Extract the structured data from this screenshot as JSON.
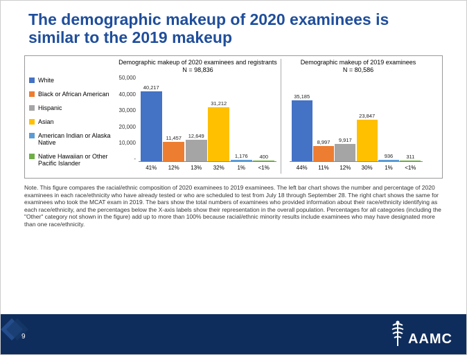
{
  "title": "The demographic makeup of 2020 examinees is similar to the 2019 makeup",
  "legend": [
    {
      "label": "White",
      "color": "#4472c4"
    },
    {
      "label": "Black or African American",
      "color": "#ed7d31"
    },
    {
      "label": "Hispanic",
      "color": "#a5a5a5"
    },
    {
      "label": "Asian",
      "color": "#ffc000"
    },
    {
      "label": "American Indian or Alaska Native",
      "color": "#5b9bd5"
    },
    {
      "label": "Native Hawaiian or Other Pacific Islander",
      "color": "#70ad47"
    }
  ],
  "ymax": 50000,
  "yticks": [
    "50,000",
    "40,000",
    "30,000",
    "20,000",
    "10,000",
    "-"
  ],
  "panel2020": {
    "title_l1": "Demographic makeup of 2020 examinees and registrants",
    "title_l2": "N = 98,836",
    "bars": [
      {
        "val": 40217,
        "label": "40,217",
        "pct": "41%",
        "color": "#4472c4"
      },
      {
        "val": 11457,
        "label": "11,457",
        "pct": "12%",
        "color": "#ed7d31"
      },
      {
        "val": 12649,
        "label": "12,649",
        "pct": "13%",
        "color": "#a5a5a5"
      },
      {
        "val": 31212,
        "label": "31,212",
        "pct": "32%",
        "color": "#ffc000"
      },
      {
        "val": 1176,
        "label": "1,176",
        "pct": "1%",
        "color": "#5b9bd5"
      },
      {
        "val": 400,
        "label": "400",
        "pct": "<1%",
        "color": "#70ad47"
      }
    ]
  },
  "panel2019": {
    "title_l1": "Demographic makeup of 2019 examinees",
    "title_l2": "N = 80,586",
    "bars": [
      {
        "val": 35185,
        "label": "35,185",
        "pct": "44%",
        "color": "#4472c4"
      },
      {
        "val": 8997,
        "label": "8,997",
        "pct": "11%",
        "color": "#ed7d31"
      },
      {
        "val": 9917,
        "label": "9,917",
        "pct": "12%",
        "color": "#a5a5a5"
      },
      {
        "val": 23847,
        "label": "23,847",
        "pct": "30%",
        "color": "#ffc000"
      },
      {
        "val": 936,
        "label": "936",
        "pct": "1%",
        "color": "#5b9bd5"
      },
      {
        "val": 311,
        "label": "311",
        "pct": "<1%",
        "color": "#70ad47"
      }
    ]
  },
  "note": "Note. This figure compares the racial/ethnic composition of 2020 examinees to 2019 examinees. The left bar chart shows the number and percentage of 2020 examinees in each race/ethnicity who have already tested or who are scheduled to test from July 18 through September 28. The right chart shows the same for examinees who took the MCAT exam in 2019. The bars show the total numbers of examinees who provided information about their race/ethnicity identifying as each race/ethnicity, and the percentages below the X-axis labels show their representation in the overall population. Percentages for all categories (including the \"Other\" category not shown in the figure) add up to more than 100% because racial/ethnic minority results include examinees who may have designated more than one race/ethnicity.",
  "page_num": "9",
  "brand": "AAMC",
  "colors": {
    "title": "#1f4e9c",
    "footer": "#0f2d5c",
    "deco1": "#2d5aa0",
    "deco2": "#173a6b"
  }
}
